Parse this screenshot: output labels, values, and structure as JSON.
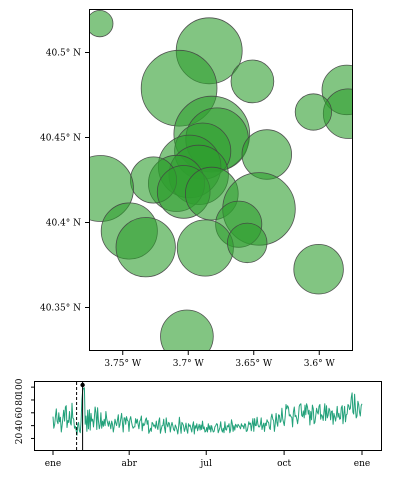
{
  "chart_data": [
    {
      "type": "scatter",
      "subtype": "bubble-map",
      "title": "",
      "xlabel": "",
      "ylabel": "",
      "xlim": [
        -3.775,
        -3.575
      ],
      "ylim": [
        40.325,
        40.525
      ],
      "grid": false,
      "x_ticks": [
        -3.75,
        -3.7,
        -3.65,
        -3.6
      ],
      "x_tick_labels": [
        "3.75° W",
        "3.7° W",
        "3.65° W",
        "3.6° W"
      ],
      "y_ticks": [
        40.35,
        40.4,
        40.45,
        40.5
      ],
      "y_tick_labels": [
        "40.35° N",
        "40.4° N",
        "40.45° N",
        "40.5° N"
      ],
      "bubble_color": "#2e9e2e",
      "bubble_opacity": 0.6,
      "bubble_stroke": "#444444",
      "points": [
        {
          "lon": -3.7675,
          "lat": 40.517,
          "size": 0.4
        },
        {
          "lon": -3.684,
          "lat": 40.501,
          "size": 1.0
        },
        {
          "lon": -3.707,
          "lat": 40.479,
          "size": 1.15
        },
        {
          "lon": -3.651,
          "lat": 40.483,
          "size": 0.65
        },
        {
          "lon": -3.579,
          "lat": 40.478,
          "size": 0.75
        },
        {
          "lon": -3.578,
          "lat": 40.464,
          "size": 0.75
        },
        {
          "lon": -3.6045,
          "lat": 40.465,
          "size": 0.55
        },
        {
          "lon": -3.682,
          "lat": 40.452,
          "size": 1.15
        },
        {
          "lon": -3.678,
          "lat": 40.449,
          "size": 0.95
        },
        {
          "lon": -3.689,
          "lat": 40.442,
          "size": 0.85
        },
        {
          "lon": -3.64,
          "lat": 40.44,
          "size": 0.75
        },
        {
          "lon": -3.699,
          "lat": 40.433,
          "size": 0.95
        },
        {
          "lon": -3.692,
          "lat": 40.428,
          "size": 0.9
        },
        {
          "lon": -3.709,
          "lat": 40.423,
          "size": 0.85
        },
        {
          "lon": -3.7265,
          "lat": 40.425,
          "size": 0.7
        },
        {
          "lon": -3.7035,
          "lat": 40.418,
          "size": 0.8
        },
        {
          "lon": -3.767,
          "lat": 40.42,
          "size": 1.0
        },
        {
          "lon": -3.682,
          "lat": 40.417,
          "size": 0.8
        },
        {
          "lon": -3.646,
          "lat": 40.408,
          "size": 1.1
        },
        {
          "lon": -3.6615,
          "lat": 40.399,
          "size": 0.7
        },
        {
          "lon": -3.745,
          "lat": 40.395,
          "size": 0.85
        },
        {
          "lon": -3.7325,
          "lat": 40.3855,
          "size": 0.9
        },
        {
          "lon": -3.687,
          "lat": 40.385,
          "size": 0.85
        },
        {
          "lon": -3.655,
          "lat": 40.388,
          "size": 0.6
        },
        {
          "lon": -3.6005,
          "lat": 40.3725,
          "size": 0.75
        },
        {
          "lon": -3.701,
          "lat": 40.333,
          "size": 0.8
        }
      ]
    },
    {
      "type": "line",
      "title": "",
      "xlabel": "",
      "ylabel": "",
      "x_start": "ene",
      "x_end": "ene",
      "x_tick_labels": [
        "ene",
        "abr",
        "jul",
        "oct",
        "ene"
      ],
      "x_tick_days": [
        0,
        90,
        181,
        273,
        365
      ],
      "y_ticks": [
        20,
        40,
        60,
        80,
        100
      ],
      "y_tick_labels": [
        "20",
        "40",
        "60",
        "80",
        "100"
      ],
      "ylim": [
        2,
        108
      ],
      "line_color": "#22a17a",
      "marker_day": 35,
      "marker_color": "#000000",
      "marker_line_style": "dashed",
      "series": [
        {
          "values": [
            54,
            36,
            42,
            55,
            66,
            47,
            43,
            60,
            46,
            53,
            30,
            40,
            52,
            64,
            47,
            69,
            71,
            37,
            48,
            45,
            62,
            44,
            41,
            75,
            52,
            50,
            36,
            39,
            33,
            25,
            42,
            45,
            32,
            29,
            48,
            80,
            95,
            98,
            99,
            42,
            55,
            31,
            64,
            35,
            65,
            33,
            59,
            47,
            50,
            38,
            51,
            69,
            60,
            34,
            68,
            48,
            35,
            41,
            60,
            36,
            47,
            39,
            50,
            40,
            62,
            51,
            45,
            39,
            47,
            42,
            35,
            47,
            42,
            30,
            38,
            50,
            44,
            40,
            48,
            57,
            37,
            41,
            50,
            59,
            45,
            30,
            52,
            52,
            42,
            54,
            48,
            47,
            31,
            49,
            54,
            46,
            40,
            36,
            38,
            38,
            51,
            44,
            50,
            42,
            35,
            47,
            49,
            55,
            32,
            44,
            40,
            42,
            49,
            52,
            42,
            48,
            28,
            32,
            36,
            31,
            45,
            43,
            39,
            41,
            36,
            47,
            38,
            34,
            47,
            52,
            28,
            34,
            40,
            40,
            50,
            37,
            29,
            52,
            42,
            38,
            45,
            43,
            30,
            39,
            45,
            40,
            34,
            32,
            41,
            38,
            34,
            27,
            38,
            53,
            40,
            28,
            45,
            43,
            40,
            31,
            36,
            44,
            34,
            28,
            43,
            39,
            41,
            35,
            30,
            40,
            46,
            27,
            40,
            36,
            43,
            32,
            37,
            42,
            33,
            41,
            34,
            47,
            35,
            38,
            30,
            31,
            37,
            30,
            43,
            34,
            40,
            30,
            40,
            34,
            30,
            31,
            38,
            40,
            43,
            42,
            29,
            33,
            37,
            46,
            34,
            30,
            36,
            29,
            46,
            34,
            33,
            40,
            38,
            43,
            29,
            33,
            49,
            43,
            31,
            40,
            33,
            42,
            40,
            37,
            42,
            40,
            38,
            35,
            43,
            39,
            40,
            35,
            43,
            42,
            31,
            32,
            38,
            46,
            42,
            44,
            32,
            42,
            51,
            31,
            51,
            40,
            40,
            53,
            42,
            38,
            38,
            42,
            52,
            34,
            40,
            44,
            31,
            44,
            40,
            49,
            46,
            45,
            36,
            34,
            52,
            58,
            50,
            48,
            31,
            42,
            59,
            45,
            39,
            57,
            56,
            45,
            47,
            67,
            51,
            45,
            40,
            54,
            73,
            66,
            71,
            68,
            55,
            57,
            54,
            53,
            38,
            61,
            69,
            54,
            56,
            51,
            43,
            53,
            70,
            73,
            74,
            56,
            54,
            63,
            52,
            72,
            57,
            74,
            69,
            58,
            64,
            41,
            62,
            49,
            72,
            66,
            43,
            45,
            55,
            67,
            61,
            58,
            70,
            73,
            50,
            57,
            55,
            48,
            62,
            74,
            48,
            71,
            52,
            56,
            67,
            64,
            49,
            62,
            63,
            42,
            59,
            54,
            47,
            56,
            70,
            53,
            59,
            50,
            51,
            68,
            71,
            43,
            58,
            70,
            46,
            57,
            58,
            73,
            71,
            65,
            67,
            84,
            91,
            61,
            58,
            89,
            67,
            52,
            55,
            78,
            73,
            61,
            55,
            71,
            74
          ]
        }
      ]
    }
  ]
}
